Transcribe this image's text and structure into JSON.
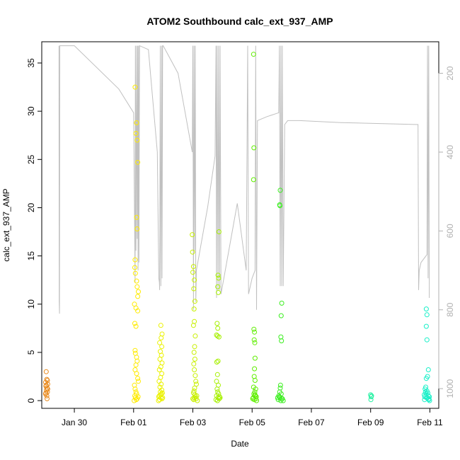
{
  "chart_data": {
    "type": "scatter",
    "title": "ATOM2 Southbound calc_ext_937_AMP",
    "xlabel": "Date",
    "ylabel": "calc_ext_937_AMP",
    "x_unit": "day",
    "xlim": [
      -1.1,
      12.3
    ],
    "ylim": [
      -0.8,
      37.2
    ],
    "x_ticks": [
      {
        "value": 0,
        "label": "Jan 30"
      },
      {
        "value": 2,
        "label": "Feb 01"
      },
      {
        "value": 4,
        "label": "Feb 03"
      },
      {
        "value": 6,
        "label": "Feb 05"
      },
      {
        "value": 8,
        "label": "Feb 07"
      },
      {
        "value": 10,
        "label": "Feb 09"
      },
      {
        "value": 12,
        "label": "Feb 11"
      }
    ],
    "y_ticks": [
      {
        "value": 0,
        "label": "0"
      },
      {
        "value": 5,
        "label": "5"
      },
      {
        "value": 10,
        "label": "10"
      },
      {
        "value": 15,
        "label": "15"
      },
      {
        "value": 20,
        "label": "20"
      },
      {
        "value": 25,
        "label": "25"
      },
      {
        "value": 30,
        "label": "30"
      },
      {
        "value": 35,
        "label": "35"
      }
    ],
    "right_axis": {
      "lim": [
        1050,
        120
      ],
      "ticks": [
        {
          "value": 200,
          "label": "200"
        },
        {
          "value": 400,
          "label": "400"
        },
        {
          "value": 600,
          "label": "600"
        },
        {
          "value": 800,
          "label": "800"
        },
        {
          "value": 1000,
          "label": "1000"
        }
      ],
      "color": "#b0b0b0"
    },
    "grid": false,
    "legend": "none",
    "series": [
      {
        "color": "#e8891c",
        "points": [
          [
            -0.95,
            3.0
          ],
          [
            -0.93,
            2.2
          ],
          [
            -0.97,
            1.9
          ],
          [
            -0.9,
            1.7
          ],
          [
            -0.96,
            1.5
          ],
          [
            -0.92,
            1.3
          ],
          [
            -0.94,
            1.1
          ],
          [
            -0.91,
            0.9
          ],
          [
            -0.97,
            0.7
          ],
          [
            -0.93,
            0.5
          ],
          [
            -0.9,
            1.2
          ],
          [
            -0.96,
            0.8
          ],
          [
            -0.92,
            0.2
          ],
          [
            -0.95,
            1.6
          ],
          [
            -0.91,
            2.1
          ]
        ]
      },
      {
        "color": "#ffeb00",
        "points": [
          [
            2.05,
            32.5
          ],
          [
            2.1,
            28.8
          ],
          [
            2.08,
            27.7
          ],
          [
            2.12,
            27.0
          ],
          [
            2.14,
            24.7
          ],
          [
            2.1,
            19.0
          ],
          [
            2.12,
            17.8
          ],
          [
            2.05,
            14.6
          ],
          [
            2.04,
            13.8
          ],
          [
            2.06,
            13.2
          ],
          [
            2.1,
            12.4
          ],
          [
            2.12,
            11.8
          ],
          [
            2.16,
            11.3
          ],
          [
            2.14,
            10.8
          ],
          [
            2.03,
            10.0
          ],
          [
            2.08,
            9.6
          ],
          [
            2.14,
            9.3
          ],
          [
            2.04,
            8.0
          ],
          [
            2.08,
            7.7
          ],
          [
            2.05,
            5.2
          ],
          [
            2.06,
            4.9
          ],
          [
            2.1,
            4.5
          ],
          [
            2.12,
            4.1
          ],
          [
            2.08,
            3.7
          ],
          [
            2.05,
            3.2
          ],
          [
            2.1,
            2.8
          ],
          [
            2.14,
            2.3
          ],
          [
            2.16,
            2.0
          ],
          [
            2.03,
            1.6
          ],
          [
            2.05,
            1.2
          ],
          [
            2.08,
            0.9
          ],
          [
            2.1,
            0.7
          ],
          [
            2.04,
            0.5
          ],
          [
            2.06,
            0.3
          ],
          [
            2.12,
            0.2
          ],
          [
            2.09,
            0.1
          ],
          [
            2.15,
            0.4
          ],
          [
            2.02,
            0.0
          ]
        ]
      },
      {
        "color": "#ebf200",
        "points": [
          [
            2.92,
            7.8
          ],
          [
            2.96,
            6.9
          ],
          [
            2.93,
            6.5
          ],
          [
            2.88,
            6.0
          ],
          [
            2.95,
            5.6
          ],
          [
            2.9,
            5.1
          ],
          [
            2.94,
            4.7
          ],
          [
            2.89,
            4.3
          ],
          [
            2.96,
            3.9
          ],
          [
            2.92,
            3.5
          ],
          [
            2.87,
            3.2
          ],
          [
            2.95,
            2.8
          ],
          [
            2.91,
            2.4
          ],
          [
            2.86,
            2.0
          ],
          [
            2.93,
            1.7
          ],
          [
            2.89,
            1.4
          ],
          [
            2.95,
            1.1
          ],
          [
            2.9,
            0.9
          ],
          [
            2.94,
            0.7
          ],
          [
            2.87,
            0.5
          ],
          [
            2.92,
            0.3
          ],
          [
            2.96,
            0.2
          ],
          [
            2.88,
            0.1
          ],
          [
            2.91,
            0.6
          ],
          [
            2.85,
            0.4
          ],
          [
            2.98,
            0.3
          ],
          [
            2.84,
            0.0
          ],
          [
            2.97,
            0.8
          ]
        ]
      },
      {
        "color": "#c8f000",
        "points": [
          [
            3.98,
            17.2
          ],
          [
            3.99,
            15.4
          ],
          [
            4.02,
            13.9
          ],
          [
            4.0,
            13.3
          ],
          [
            4.05,
            12.5
          ],
          [
            4.03,
            11.6
          ],
          [
            4.07,
            10.3
          ],
          [
            4.04,
            9.5
          ],
          [
            4.05,
            8.2
          ],
          [
            4.02,
            7.8
          ],
          [
            4.08,
            6.7
          ],
          [
            4.06,
            5.6
          ],
          [
            4.04,
            5.0
          ],
          [
            4.07,
            4.3
          ],
          [
            4.03,
            3.8
          ],
          [
            4.05,
            3.2
          ],
          [
            4.08,
            2.6
          ],
          [
            4.1,
            2.0
          ],
          [
            4.12,
            1.7
          ],
          [
            4.06,
            1.3
          ],
          [
            4.04,
            1.0
          ],
          [
            4.02,
            0.8
          ],
          [
            4.07,
            0.6
          ],
          [
            4.09,
            0.4
          ],
          [
            4.05,
            0.3
          ],
          [
            4.11,
            0.2
          ],
          [
            4.03,
            0.1
          ],
          [
            4.15,
            0.0
          ],
          [
            4.0,
            0.2
          ],
          [
            4.13,
            0.5
          ]
        ]
      },
      {
        "color": "#a6f000",
        "points": [
          [
            4.88,
            17.5
          ],
          [
            4.85,
            13.0
          ],
          [
            4.87,
            12.7
          ],
          [
            4.84,
            11.8
          ],
          [
            4.86,
            11.2
          ],
          [
            4.82,
            8.0
          ],
          [
            4.84,
            7.5
          ],
          [
            4.8,
            6.8
          ],
          [
            4.83,
            6.7
          ],
          [
            4.88,
            6.6
          ],
          [
            4.81,
            4.0
          ],
          [
            4.85,
            4.1
          ],
          [
            4.83,
            2.7
          ],
          [
            4.8,
            2.0
          ],
          [
            4.86,
            1.6
          ],
          [
            4.82,
            1.2
          ],
          [
            4.84,
            0.9
          ],
          [
            4.87,
            0.7
          ],
          [
            4.8,
            0.5
          ],
          [
            4.85,
            0.3
          ],
          [
            4.89,
            0.2
          ],
          [
            4.78,
            0.1
          ],
          [
            4.92,
            0.3
          ],
          [
            4.83,
            0.0
          ],
          [
            4.9,
            0.4
          ]
        ]
      },
      {
        "color": "#5fee00",
        "points": [
          [
            6.05,
            35.9
          ],
          [
            6.06,
            26.2
          ],
          [
            6.05,
            22.9
          ],
          [
            6.06,
            7.4
          ],
          [
            6.08,
            7.1
          ],
          [
            6.07,
            6.3
          ],
          [
            6.09,
            6.0
          ],
          [
            6.1,
            4.4
          ],
          [
            6.08,
            3.3
          ],
          [
            6.07,
            2.5
          ],
          [
            6.1,
            2.1
          ],
          [
            6.05,
            1.4
          ],
          [
            6.12,
            1.2
          ],
          [
            6.09,
            0.9
          ],
          [
            6.06,
            0.7
          ],
          [
            6.11,
            0.5
          ],
          [
            6.04,
            0.3
          ],
          [
            6.13,
            0.2
          ],
          [
            6.07,
            0.1
          ],
          [
            6.15,
            0.0
          ],
          [
            6.02,
            0.2
          ],
          [
            6.14,
            0.4
          ],
          [
            6.1,
            0.6
          ]
        ]
      },
      {
        "color": "#3cee20",
        "points": [
          [
            6.95,
            21.8
          ],
          [
            6.93,
            20.3
          ],
          [
            6.94,
            20.2
          ],
          [
            7.0,
            10.1
          ],
          [
            6.98,
            8.8
          ],
          [
            6.97,
            6.6
          ],
          [
            6.99,
            6.2
          ],
          [
            6.96,
            1.6
          ],
          [
            6.95,
            1.3
          ],
          [
            6.93,
            0.9
          ],
          [
            6.98,
            0.7
          ],
          [
            6.9,
            0.5
          ],
          [
            6.94,
            0.3
          ],
          [
            7.02,
            0.2
          ],
          [
            6.88,
            0.1
          ],
          [
            7.05,
            0.0
          ],
          [
            6.92,
            0.4
          ],
          [
            7.0,
            0.2
          ],
          [
            6.86,
            0.3
          ],
          [
            6.97,
            0.0
          ]
        ]
      },
      {
        "color": "#20f0a0",
        "points": [
          [
            10.0,
            0.6
          ],
          [
            10.02,
            0.4
          ],
          [
            10.01,
            0.1
          ],
          [
            10.03,
            0.5
          ]
        ]
      },
      {
        "color": "#18f0c8",
        "points": [
          [
            11.88,
            9.5
          ],
          [
            11.9,
            8.9
          ],
          [
            11.88,
            7.7
          ],
          [
            11.9,
            6.3
          ],
          [
            11.95,
            3.2
          ],
          [
            11.92,
            2.5
          ],
          [
            11.88,
            2.3
          ],
          [
            11.86,
            1.4
          ],
          [
            11.84,
            1.2
          ],
          [
            11.9,
            1.0
          ],
          [
            11.85,
            0.9
          ],
          [
            11.93,
            0.8
          ],
          [
            11.87,
            0.7
          ],
          [
            11.95,
            0.5
          ],
          [
            11.83,
            0.4
          ],
          [
            11.91,
            0.3
          ],
          [
            11.97,
            0.2
          ],
          [
            11.82,
            0.1
          ],
          [
            11.99,
            0.0
          ],
          [
            11.89,
            0.3
          ],
          [
            11.96,
            0.1
          ],
          [
            11.81,
            0.6
          ],
          [
            11.98,
            0.4
          ]
        ]
      }
    ],
    "trace_series": {
      "color": "#c0c0c0",
      "axis": "right",
      "points": [
        [
          -0.52,
          130
        ],
        [
          -0.51,
          780
        ],
        [
          -0.5,
          810
        ],
        [
          -0.49,
          130
        ],
        [
          -0.48,
          130
        ],
        [
          -0.46,
          130
        ],
        [
          -0.45,
          130
        ],
        [
          0.0,
          130
        ],
        [
          1.5,
          240
        ],
        [
          2.0,
          300
        ],
        [
          2.05,
          730
        ],
        [
          2.06,
          130
        ],
        [
          2.08,
          650
        ],
        [
          2.1,
          130
        ],
        [
          2.12,
          620
        ],
        [
          2.14,
          130
        ],
        [
          2.15,
          700
        ],
        [
          2.17,
          130
        ],
        [
          2.18,
          680
        ],
        [
          2.2,
          130
        ],
        [
          2.5,
          140
        ],
        [
          2.8,
          400
        ],
        [
          2.85,
          720
        ],
        [
          2.87,
          730
        ],
        [
          2.88,
          750
        ],
        [
          2.9,
          130
        ],
        [
          2.92,
          740
        ],
        [
          2.95,
          130
        ],
        [
          2.96,
          720
        ],
        [
          2.98,
          130
        ],
        [
          3.0,
          130
        ],
        [
          3.5,
          200
        ],
        [
          3.98,
          400
        ],
        [
          4.0,
          130
        ],
        [
          4.02,
          800
        ],
        [
          4.04,
          130
        ],
        [
          4.06,
          650
        ],
        [
          4.08,
          130
        ],
        [
          4.1,
          780
        ],
        [
          4.12,
          700
        ],
        [
          4.5,
          540
        ],
        [
          4.75,
          410
        ],
        [
          4.78,
          130
        ],
        [
          4.8,
          770
        ],
        [
          4.82,
          130
        ],
        [
          4.85,
          750
        ],
        [
          4.87,
          130
        ],
        [
          4.9,
          750
        ],
        [
          4.92,
          130
        ],
        [
          4.95,
          760
        ],
        [
          5.5,
          530
        ],
        [
          5.8,
          700
        ],
        [
          5.85,
          130
        ],
        [
          5.88,
          760
        ],
        [
          6.0,
          720
        ],
        [
          6.1,
          700
        ],
        [
          6.12,
          130
        ],
        [
          6.15,
          800
        ],
        [
          6.18,
          320
        ],
        [
          6.5,
          310
        ],
        [
          6.9,
          300
        ],
        [
          6.92,
          130
        ],
        [
          6.95,
          740
        ],
        [
          6.97,
          130
        ],
        [
          7.0,
          740
        ],
        [
          7.02,
          130
        ],
        [
          7.05,
          740
        ],
        [
          7.1,
          330
        ],
        [
          7.2,
          320
        ],
        [
          7.6,
          320
        ],
        [
          9.0,
          325
        ],
        [
          11.6,
          330
        ],
        [
          11.62,
          750
        ],
        [
          11.64,
          700
        ],
        [
          11.7,
          680
        ],
        [
          11.9,
          660
        ],
        [
          11.92,
          130
        ],
        [
          11.94,
          720
        ],
        [
          11.96,
          130
        ],
        [
          11.98,
          770
        ]
      ]
    }
  }
}
